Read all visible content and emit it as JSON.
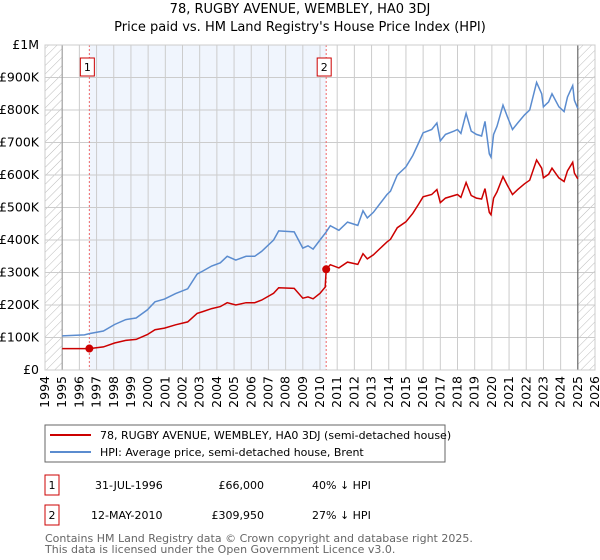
{
  "chart_data": {
    "type": "line",
    "title": "78, RUGBY AVENUE, WEMBLEY, HA0 3DJ",
    "subtitle": "Price paid vs. HM Land Registry's House Price Index (HPI)",
    "xlim": [
      1994,
      2026
    ],
    "ylim": [
      0,
      1000000
    ],
    "x_ticks": [
      "1994",
      "1995",
      "1996",
      "1997",
      "1998",
      "1999",
      "2000",
      "2001",
      "2002",
      "2003",
      "2004",
      "2005",
      "2006",
      "2007",
      "2008",
      "2009",
      "2010",
      "2011",
      "2012",
      "2013",
      "2014",
      "2015",
      "2016",
      "2017",
      "2018",
      "2019",
      "2020",
      "2021",
      "2022",
      "2023",
      "2024",
      "2025",
      "2026"
    ],
    "y_ticks": [
      {
        "value": 0,
        "label": "£0"
      },
      {
        "value": 100000,
        "label": "£100K"
      },
      {
        "value": 200000,
        "label": "£200K"
      },
      {
        "value": 300000,
        "label": "£300K"
      },
      {
        "value": 400000,
        "label": "£400K"
      },
      {
        "value": 500000,
        "label": "£500K"
      },
      {
        "value": 600000,
        "label": "£600K"
      },
      {
        "value": 700000,
        "label": "£700K"
      },
      {
        "value": 800000,
        "label": "£800K"
      },
      {
        "value": 900000,
        "label": "£900K"
      },
      {
        "value": 1000000,
        "label": "£1M"
      }
    ],
    "grid": true,
    "data_range": [
      1995,
      2025
    ],
    "ownership_shading": [
      1996.58,
      2010.36
    ],
    "series": [
      {
        "name": "78, RUGBY AVENUE, WEMBLEY, HA0 3DJ (semi-detached house)",
        "color": "#cc0000",
        "points": [
          [
            1995,
            66000
          ],
          [
            1996.58,
            66000
          ],
          [
            1997.4,
            71000
          ],
          [
            1998.05,
            83000
          ],
          [
            1998.7,
            91000
          ],
          [
            1999.3,
            94000
          ],
          [
            1999.95,
            109000
          ],
          [
            2000.4,
            124000
          ],
          [
            2000.95,
            129000
          ],
          [
            2001.6,
            139000
          ],
          [
            2002.3,
            148000
          ],
          [
            2002.85,
            174000
          ],
          [
            2003.2,
            180000
          ],
          [
            2003.7,
            189000
          ],
          [
            2004.2,
            195000
          ],
          [
            2004.6,
            207000
          ],
          [
            2005.1,
            200000
          ],
          [
            2005.7,
            207000
          ],
          [
            2006.2,
            207000
          ],
          [
            2006.6,
            215000
          ],
          [
            2007.3,
            236000
          ],
          [
            2007.6,
            253000
          ],
          [
            2008.5,
            251000
          ],
          [
            2009.0,
            221000
          ],
          [
            2009.3,
            225000
          ],
          [
            2009.6,
            219000
          ],
          [
            2010.0,
            236000
          ],
          [
            2010.3,
            255000
          ],
          [
            2010.36,
            309950
          ],
          [
            2010.6,
            324000
          ],
          [
            2011.1,
            314000
          ],
          [
            2011.6,
            332000
          ],
          [
            2012.2,
            325000
          ],
          [
            2012.5,
            358000
          ],
          [
            2012.75,
            342000
          ],
          [
            2013.1,
            354000
          ],
          [
            2013.9,
            394000
          ],
          [
            2014.1,
            402000
          ],
          [
            2014.5,
            438000
          ],
          [
            2015.0,
            456000
          ],
          [
            2015.4,
            482000
          ],
          [
            2015.75,
            511000
          ],
          [
            2016.0,
            533000
          ],
          [
            2016.5,
            540000
          ],
          [
            2016.8,
            555000
          ],
          [
            2017.0,
            515000
          ],
          [
            2017.3,
            529000
          ],
          [
            2017.8,
            537000
          ],
          [
            2018.0,
            540000
          ],
          [
            2018.2,
            531000
          ],
          [
            2018.5,
            577000
          ],
          [
            2018.8,
            537000
          ],
          [
            2019.1,
            529000
          ],
          [
            2019.4,
            526000
          ],
          [
            2019.6,
            558000
          ],
          [
            2019.85,
            485000
          ],
          [
            2019.95,
            478000
          ],
          [
            2020.1,
            529000
          ],
          [
            2020.3,
            548000
          ],
          [
            2020.65,
            595000
          ],
          [
            2020.9,
            569000
          ],
          [
            2021.2,
            540000
          ],
          [
            2021.5,
            555000
          ],
          [
            2021.9,
            573000
          ],
          [
            2022.2,
            584000
          ],
          [
            2022.6,
            646000
          ],
          [
            2022.9,
            621000
          ],
          [
            2023.0,
            591000
          ],
          [
            2023.3,
            602000
          ],
          [
            2023.5,
            621000
          ],
          [
            2023.9,
            591000
          ],
          [
            2024.2,
            580000
          ],
          [
            2024.4,
            613000
          ],
          [
            2024.7,
            639000
          ],
          [
            2024.8,
            606000
          ],
          [
            2025.0,
            588000
          ]
        ]
      },
      {
        "name": "HPI: Average price, semi-detached house, Brent",
        "color": "#5b8ccf",
        "points": [
          [
            1995,
            105000
          ],
          [
            1996.3,
            108000
          ],
          [
            1996.58,
            112000
          ],
          [
            1997.4,
            120000
          ],
          [
            1998.05,
            140000
          ],
          [
            1998.7,
            155000
          ],
          [
            1999.3,
            160000
          ],
          [
            1999.95,
            185000
          ],
          [
            2000.4,
            210000
          ],
          [
            2000.95,
            218000
          ],
          [
            2001.6,
            235000
          ],
          [
            2002.3,
            250000
          ],
          [
            2002.85,
            295000
          ],
          [
            2003.2,
            305000
          ],
          [
            2003.7,
            320000
          ],
          [
            2004.2,
            330000
          ],
          [
            2004.6,
            350000
          ],
          [
            2005.1,
            338000
          ],
          [
            2005.7,
            350000
          ],
          [
            2006.2,
            350000
          ],
          [
            2006.6,
            365000
          ],
          [
            2007.3,
            400000
          ],
          [
            2007.6,
            428000
          ],
          [
            2008.5,
            425000
          ],
          [
            2009.0,
            375000
          ],
          [
            2009.3,
            382000
          ],
          [
            2009.6,
            372000
          ],
          [
            2010.0,
            400000
          ],
          [
            2010.36,
            425000
          ],
          [
            2010.6,
            444000
          ],
          [
            2011.1,
            430000
          ],
          [
            2011.6,
            455000
          ],
          [
            2012.2,
            445000
          ],
          [
            2012.5,
            490000
          ],
          [
            2012.75,
            468000
          ],
          [
            2013.1,
            485000
          ],
          [
            2013.9,
            540000
          ],
          [
            2014.1,
            550000
          ],
          [
            2014.5,
            600000
          ],
          [
            2015.0,
            625000
          ],
          [
            2015.4,
            660000
          ],
          [
            2015.75,
            700000
          ],
          [
            2016.0,
            730000
          ],
          [
            2016.5,
            740000
          ],
          [
            2016.8,
            760000
          ],
          [
            2017.0,
            705000
          ],
          [
            2017.3,
            725000
          ],
          [
            2017.8,
            735000
          ],
          [
            2018.0,
            740000
          ],
          [
            2018.2,
            728000
          ],
          [
            2018.5,
            790000
          ],
          [
            2018.8,
            735000
          ],
          [
            2019.1,
            725000
          ],
          [
            2019.4,
            720000
          ],
          [
            2019.6,
            765000
          ],
          [
            2019.85,
            665000
          ],
          [
            2019.95,
            655000
          ],
          [
            2020.1,
            725000
          ],
          [
            2020.3,
            750000
          ],
          [
            2020.65,
            815000
          ],
          [
            2020.9,
            780000
          ],
          [
            2021.2,
            740000
          ],
          [
            2021.5,
            760000
          ],
          [
            2021.9,
            785000
          ],
          [
            2022.2,
            800000
          ],
          [
            2022.6,
            885000
          ],
          [
            2022.9,
            850000
          ],
          [
            2023.0,
            810000
          ],
          [
            2023.3,
            825000
          ],
          [
            2023.5,
            850000
          ],
          [
            2023.9,
            810000
          ],
          [
            2024.2,
            795000
          ],
          [
            2024.4,
            840000
          ],
          [
            2024.7,
            875000
          ],
          [
            2024.8,
            830000
          ],
          [
            2025.0,
            805000
          ]
        ]
      }
    ],
    "sales": [
      {
        "marker": "1",
        "x": 1996.58,
        "value": 66000,
        "date": "31-JUL-1996",
        "price": "£66,000",
        "hpi_diff": "40% ↓ HPI"
      },
      {
        "marker": "2",
        "x": 2010.36,
        "value": 309950,
        "date": "12-MAY-2010",
        "price": "£309,950",
        "hpi_diff": "27% ↓ HPI"
      }
    ]
  },
  "footer": {
    "line1": "Contains HM Land Registry data © Crown copyright and database right 2025.",
    "line2": "This data is licensed under the Open Government Licence v3.0."
  }
}
